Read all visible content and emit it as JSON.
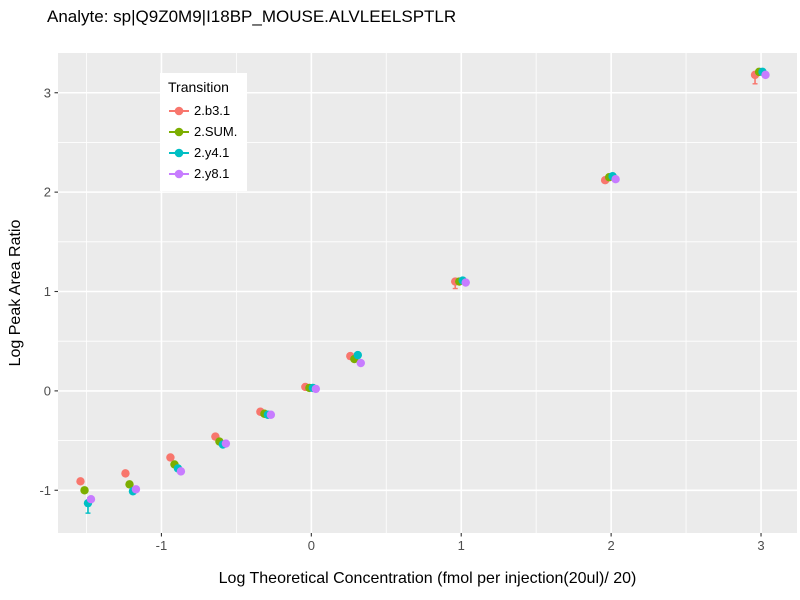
{
  "chart_data": {
    "type": "scatter",
    "title": "Analyte: sp|Q9Z0M9|I18BP_MOUSE.ALVLEELSPTLR",
    "xlabel": "Log Theoretical Concentration (fmol per injection(20ul)/ 20)",
    "ylabel": "Log Peak Area Ratio",
    "legend_title": "Transition",
    "legend_position": "inside-top-left",
    "grid": true,
    "xlim": [
      -1.69,
      3.24
    ],
    "ylim": [
      -1.43,
      3.4
    ],
    "xticks": [
      -1,
      0,
      1,
      2,
      3
    ],
    "yticks": [
      -1,
      0,
      1,
      2,
      3
    ],
    "minor_step": 0.5,
    "x": [
      -1.5,
      -1.2,
      -0.9,
      -0.6,
      -0.3,
      0,
      0.3,
      1,
      2,
      3
    ],
    "series": [
      {
        "name": "2.b3.1",
        "color": "#F8766D",
        "dodge": -0.04,
        "values": [
          -0.91,
          -0.83,
          -0.67,
          -0.46,
          -0.21,
          0.04,
          0.35,
          1.1,
          2.12,
          3.18
        ]
      },
      {
        "name": "2.SUM.",
        "color": "#7CAE00",
        "dodge": -0.013,
        "values": [
          -1.0,
          -0.94,
          -0.74,
          -0.51,
          -0.23,
          0.03,
          0.32,
          1.1,
          2.15,
          3.21
        ]
      },
      {
        "name": "2.y4.1",
        "color": "#00BFC4",
        "dodge": 0.01,
        "values": [
          -1.13,
          -1.01,
          -0.78,
          -0.54,
          -0.24,
          0.03,
          0.36,
          1.11,
          2.16,
          3.21
        ]
      },
      {
        "name": "2.y8.1",
        "color": "#C77CFF",
        "dodge": 0.03,
        "values": [
          -1.09,
          -0.99,
          -0.81,
          -0.53,
          -0.24,
          0.02,
          0.28,
          1.09,
          2.13,
          3.18
        ]
      }
    ],
    "error_bars": [
      {
        "series": 2,
        "x": -1.5,
        "ylo": -1.23,
        "yhi": -1.07
      },
      {
        "series": 0,
        "x": 1,
        "ylo": 1.03,
        "yhi": 1.1
      },
      {
        "series": 0,
        "x": 3,
        "ylo": 3.09,
        "yhi": 3.18
      }
    ],
    "colors": {
      "panel": "#EBEBEB",
      "grid": "#FFFFFF",
      "axis_text": "#4D4D4D",
      "tick": "#333333",
      "text": "#000000"
    }
  }
}
